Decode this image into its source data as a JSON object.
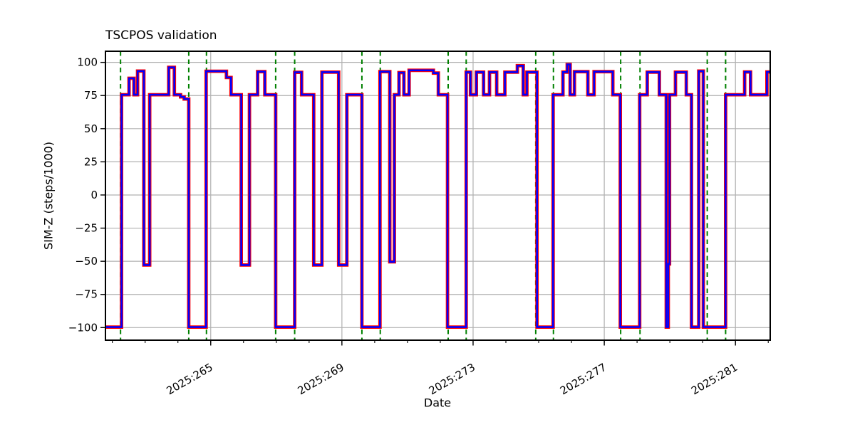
{
  "chart_data": {
    "type": "line",
    "title": "TSCPOS validation",
    "xlabel": "Date",
    "ylabel": "SIM-Z (steps/1000)",
    "grid": true,
    "legend": false,
    "xlim": [
      261.79,
      282.06
    ],
    "ylim": [
      -109.5,
      108.4
    ],
    "yticks": [
      {
        "v": -100,
        "label": "−100"
      },
      {
        "v": -75,
        "label": "−75"
      },
      {
        "v": -50,
        "label": "−50"
      },
      {
        "v": -25,
        "label": "−25"
      },
      {
        "v": 0,
        "label": "0"
      },
      {
        "v": 25,
        "label": "25"
      },
      {
        "v": 50,
        "label": "50"
      },
      {
        "v": 75,
        "label": "75"
      },
      {
        "v": 100,
        "label": "100"
      }
    ],
    "xticks_major": [
      {
        "x": 265,
        "label": "2025:265"
      },
      {
        "x": 269,
        "label": "2025:269"
      },
      {
        "x": 273,
        "label": "2025:273"
      },
      {
        "x": 277,
        "label": "2025:277"
      },
      {
        "x": 281,
        "label": "2025:281"
      }
    ],
    "xtick_minor_step": 1,
    "line_outer_color": "#ff0000",
    "line_inner_color": "#0000ff",
    "vline_color": "#008000",
    "grid_color": "#b0b0b0",
    "steps_format": "[day_of_2025, sim_z_ksteps]",
    "steps": [
      [
        261.79,
        -99.6
      ],
      [
        262.28,
        75.6
      ],
      [
        262.51,
        88.0
      ],
      [
        262.66,
        75.6
      ],
      [
        262.77,
        93.4
      ],
      [
        262.96,
        -52.8
      ],
      [
        263.14,
        75.6
      ],
      [
        263.72,
        96.2
      ],
      [
        263.89,
        75.6
      ],
      [
        264.08,
        74.0
      ],
      [
        264.19,
        72.4
      ],
      [
        264.33,
        -99.6
      ],
      [
        264.86,
        93.3
      ],
      [
        265.48,
        88.6
      ],
      [
        265.62,
        75.6
      ],
      [
        265.93,
        -52.8
      ],
      [
        266.18,
        75.6
      ],
      [
        266.43,
        93.0
      ],
      [
        266.65,
        75.6
      ],
      [
        266.98,
        -99.6
      ],
      [
        267.56,
        92.5
      ],
      [
        267.77,
        75.6
      ],
      [
        268.14,
        -52.8
      ],
      [
        268.39,
        92.6
      ],
      [
        268.9,
        -52.8
      ],
      [
        269.15,
        75.6
      ],
      [
        269.61,
        -99.6
      ],
      [
        270.16,
        93.0
      ],
      [
        270.46,
        -50.4
      ],
      [
        270.6,
        75.6
      ],
      [
        270.74,
        92.3
      ],
      [
        270.89,
        75.6
      ],
      [
        271.05,
        94.0
      ],
      [
        271.79,
        91.9
      ],
      [
        271.94,
        75.6
      ],
      [
        272.22,
        -99.6
      ],
      [
        272.79,
        92.6
      ],
      [
        272.92,
        75.6
      ],
      [
        273.1,
        92.6
      ],
      [
        273.32,
        75.6
      ],
      [
        273.5,
        92.6
      ],
      [
        273.72,
        75.6
      ],
      [
        273.97,
        92.6
      ],
      [
        274.35,
        97.5
      ],
      [
        274.53,
        75.6
      ],
      [
        274.64,
        92.6
      ],
      [
        274.95,
        -99.6
      ],
      [
        275.44,
        75.6
      ],
      [
        275.74,
        92.7
      ],
      [
        275.87,
        98.4
      ],
      [
        275.96,
        75.6
      ],
      [
        276.09,
        93.0
      ],
      [
        276.5,
        75.6
      ],
      [
        276.69,
        93.0
      ],
      [
        277.26,
        75.6
      ],
      [
        277.49,
        -99.6
      ],
      [
        278.08,
        75.6
      ],
      [
        278.31,
        92.6
      ],
      [
        278.68,
        75.6
      ],
      [
        278.89,
        -99.6
      ],
      [
        278.95,
        -52.0
      ],
      [
        278.99,
        75.6
      ],
      [
        279.17,
        92.6
      ],
      [
        279.5,
        75.6
      ],
      [
        279.66,
        -99.6
      ],
      [
        279.88,
        93.4
      ],
      [
        280.02,
        -99.6
      ],
      [
        280.7,
        75.6
      ],
      [
        281.28,
        92.8
      ],
      [
        281.46,
        75.6
      ],
      [
        281.96,
        92.8
      ]
    ],
    "t_end": 282.06,
    "vlines": [
      262.25,
      264.33,
      264.87,
      266.98,
      267.56,
      269.61,
      270.17,
      272.24,
      272.79,
      274.91,
      275.45,
      277.5,
      278.09,
      280.14,
      280.7
    ]
  }
}
